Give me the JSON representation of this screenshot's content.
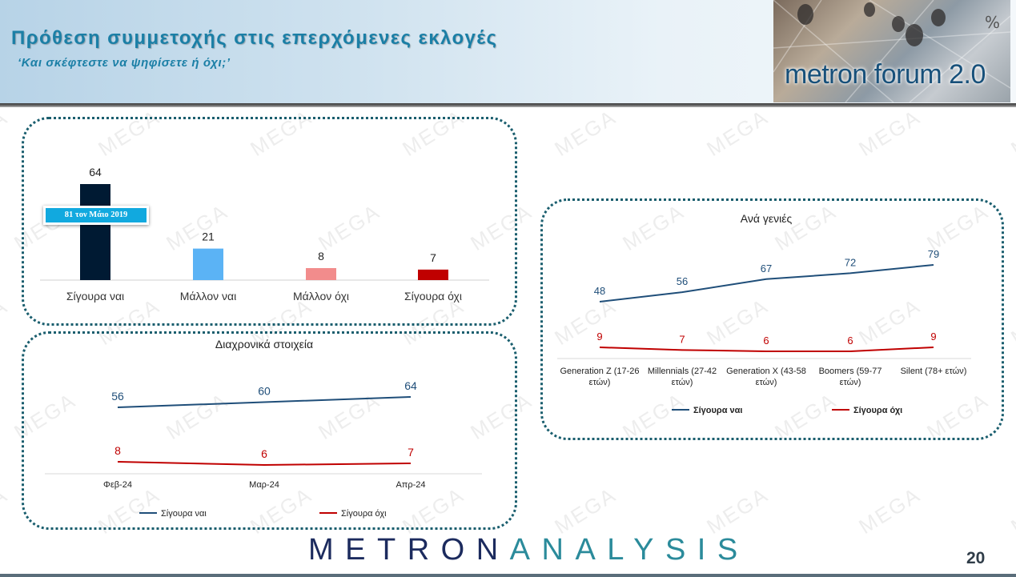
{
  "header": {
    "title": "Πρόθεση συμμετοχής στις επερχόμενες εκλογές",
    "subtitle": "‘Και σκέφτεστε να ψηφίσετε ή όχι;’",
    "unit": "%",
    "brand": "metron forum 2.0"
  },
  "watermark": "MEGA",
  "callout": "81 τον Μάιο 2019",
  "footer": {
    "logo_dark": "METRON",
    "logo_light": "ANALYSIS",
    "page_number": "20"
  },
  "colors": {
    "navy": "#001a33",
    "light_blue": "#5bb3f5",
    "pink": "#f28c8c",
    "dark_red": "#c00000",
    "series_yes": "#1f4e79",
    "series_no": "#c00000",
    "panel_border": "#1a5e6e",
    "title": "#1b7fa6"
  },
  "chart_data": [
    {
      "type": "bar",
      "title": "",
      "categories": [
        "Σίγουρα ναι",
        "Μάλλον ναι",
        "Μάλλον όχι",
        "Σίγουρα όχι"
      ],
      "values": [
        64,
        21,
        8,
        7
      ],
      "colors": [
        "#001a33",
        "#5bb3f5",
        "#f28c8c",
        "#c00000"
      ],
      "ylim": [
        0,
        64
      ],
      "annotation": "81 τον Μάιο 2019",
      "grid": false,
      "legend": "none"
    },
    {
      "type": "line",
      "title": "Διαχρονικά στοιχεία",
      "categories": [
        "Φεβ-24",
        "Μαρ-24",
        "Απρ-24"
      ],
      "series": [
        {
          "name": "Σίγουρα ναι",
          "values": [
            56,
            60,
            64
          ],
          "color": "#1f4e79"
        },
        {
          "name": "Σίγουρα όχι",
          "values": [
            8,
            6,
            7
          ],
          "color": "#c00000"
        }
      ],
      "grid": false,
      "legend": "bottom"
    },
    {
      "type": "line",
      "title": "Ανά γενιές",
      "categories": [
        [
          "Generation Z (17-26",
          "ετών)"
        ],
        [
          "Millennials (27-42",
          "ετών)"
        ],
        [
          "Generation X (43-58",
          "ετών)"
        ],
        [
          "Boomers (59-77",
          "ετών)"
        ],
        [
          "Silent (78+ ετών)"
        ]
      ],
      "series": [
        {
          "name": "Σίγουρα ναι",
          "values": [
            48,
            56,
            67,
            72,
            79
          ],
          "color": "#1f4e79"
        },
        {
          "name": "Σίγουρα όχι",
          "values": [
            9,
            7,
            6,
            6,
            9
          ],
          "color": "#c00000"
        }
      ],
      "grid": false,
      "legend": "bottom"
    }
  ]
}
